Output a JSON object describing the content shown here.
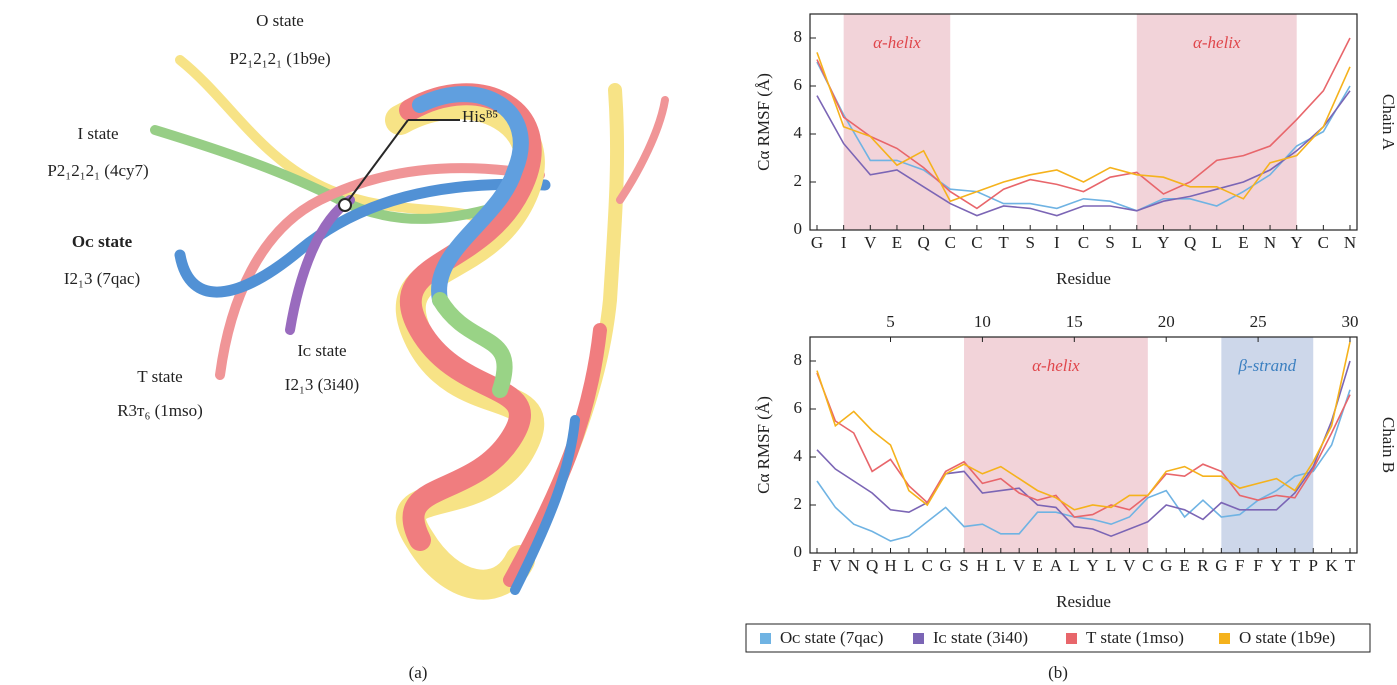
{
  "panel_a": {
    "caption": "(a)",
    "labels": {
      "o_state": "O state",
      "o_group": "P2₁2₁2₁ (1b9e)",
      "i_state": "I state",
      "i_group": "P2₁2₁2₁ (4cy7)",
      "oc_state": "Oᴄ state",
      "oc_group": "I2₁3 (7qac)",
      "t_state": "T state",
      "t_group": "R3ᴛ₆ (1mso)",
      "ic_state": "Iᴄ state",
      "ic_group": "I2₁3 (3i40)",
      "his": "Hisᴮ⁵"
    }
  },
  "panel_b": {
    "caption": "(b)"
  },
  "chart_data": [
    {
      "type": "line",
      "side_label": "Chain A",
      "y_label": "Cα RMSF (Å)",
      "x_label": "Residue",
      "categories": [
        "G",
        "I",
        "V",
        "E",
        "Q",
        "C",
        "C",
        "T",
        "S",
        "I",
        "C",
        "S",
        "L",
        "Y",
        "Q",
        "L",
        "E",
        "N",
        "Y",
        "C",
        "N"
      ],
      "ylim": [
        0,
        9
      ],
      "yticks": [
        0,
        2,
        4,
        6,
        8
      ],
      "regions": [
        {
          "label": "α-helix",
          "range": [
            2,
            6
          ],
          "color": "#f2d3d9",
          "label_color": "#e0474c"
        },
        {
          "label": "α-helix",
          "range": [
            13,
            19
          ],
          "color": "#f2d3d9",
          "label_color": "#e0474c"
        }
      ],
      "series": [
        {
          "color": "#6fb3e3",
          "values": [
            7.0,
            4.8,
            2.9,
            2.9,
            2.5,
            1.7,
            1.6,
            1.1,
            1.1,
            0.9,
            1.3,
            1.2,
            0.8,
            1.3,
            1.3,
            1.0,
            1.6,
            2.3,
            3.5,
            4.1,
            6.0
          ]
        },
        {
          "color": "#7b65b5",
          "values": [
            5.6,
            3.6,
            2.3,
            2.5,
            1.8,
            1.1,
            0.6,
            1.0,
            0.9,
            0.6,
            1.0,
            1.0,
            0.8,
            1.2,
            1.4,
            1.7,
            2.0,
            2.5,
            3.3,
            4.3,
            5.8
          ]
        },
        {
          "color": "#e8666b",
          "values": [
            7.1,
            4.7,
            3.9,
            3.4,
            2.6,
            1.6,
            0.9,
            1.7,
            2.1,
            1.9,
            1.6,
            2.2,
            2.4,
            1.5,
            2.0,
            2.9,
            3.1,
            3.5,
            4.6,
            5.8,
            8.0
          ]
        },
        {
          "color": "#f5b21c",
          "values": [
            7.4,
            4.3,
            3.9,
            2.7,
            3.3,
            1.2,
            1.6,
            2.0,
            2.3,
            2.5,
            2.0,
            2.6,
            2.3,
            2.2,
            1.8,
            1.8,
            1.3,
            2.8,
            3.1,
            4.3,
            6.8
          ]
        }
      ]
    },
    {
      "type": "line",
      "side_label": "Chain B",
      "y_label": "Cα RMSF (Å)",
      "x_label": "Residue",
      "categories": [
        "F",
        "V",
        "N",
        "Q",
        "H",
        "L",
        "C",
        "G",
        "S",
        "H",
        "L",
        "V",
        "E",
        "A",
        "L",
        "Y",
        "L",
        "V",
        "C",
        "G",
        "E",
        "R",
        "G",
        "F",
        "F",
        "Y",
        "T",
        "P",
        "K",
        "T"
      ],
      "ylim": [
        0,
        9
      ],
      "yticks": [
        0,
        2,
        4,
        6,
        8
      ],
      "x2ticks": [
        5,
        10,
        15,
        20,
        25,
        30
      ],
      "regions": [
        {
          "label": "α-helix",
          "range": [
            9,
            19
          ],
          "color": "#f2d3d9",
          "label_color": "#e0474c"
        },
        {
          "label": "β-strand",
          "range": [
            23,
            28
          ],
          "color": "#cdd7ea",
          "label_color": "#3b7fc0"
        }
      ],
      "series": [
        {
          "name": "Oᴄ state (7qac)",
          "color": "#6fb3e3",
          "values": [
            3.0,
            1.9,
            1.2,
            0.9,
            0.5,
            0.7,
            1.3,
            1.9,
            1.1,
            1.2,
            0.8,
            0.8,
            1.7,
            1.7,
            1.5,
            1.4,
            1.2,
            1.5,
            2.3,
            2.6,
            1.5,
            2.2,
            1.5,
            1.6,
            2.2,
            2.6,
            3.2,
            3.4,
            4.5,
            6.8
          ]
        },
        {
          "name": "Iᴄ state (3i40)",
          "color": "#7b65b5",
          "values": [
            4.3,
            3.5,
            3.0,
            2.5,
            1.8,
            1.7,
            2.1,
            3.3,
            3.4,
            2.5,
            2.6,
            2.7,
            2.0,
            1.9,
            1.1,
            1.0,
            0.7,
            1.0,
            1.3,
            2.0,
            1.8,
            1.4,
            2.1,
            1.8,
            1.8,
            1.8,
            2.5,
            3.6,
            5.5,
            8.0
          ]
        },
        {
          "name": "T state (1mso)",
          "color": "#e8666b",
          "values": [
            7.5,
            5.5,
            5.0,
            3.4,
            3.9,
            2.8,
            2.1,
            3.4,
            3.8,
            2.9,
            3.1,
            2.5,
            2.2,
            2.4,
            1.5,
            1.6,
            2.0,
            1.8,
            2.4,
            3.3,
            3.2,
            3.7,
            3.4,
            2.4,
            2.2,
            2.4,
            2.3,
            3.5,
            5.0,
            6.6
          ]
        },
        {
          "name": "O state (1b9e)",
          "color": "#f5b21c",
          "values": [
            7.6,
            5.3,
            5.9,
            5.1,
            4.5,
            2.6,
            2.0,
            3.3,
            3.7,
            3.3,
            3.6,
            3.1,
            2.6,
            2.3,
            1.8,
            2.0,
            1.9,
            2.4,
            2.4,
            3.4,
            3.6,
            3.2,
            3.2,
            2.7,
            2.9,
            3.1,
            2.6,
            3.8,
            5.3,
            8.8
          ]
        }
      ]
    }
  ]
}
